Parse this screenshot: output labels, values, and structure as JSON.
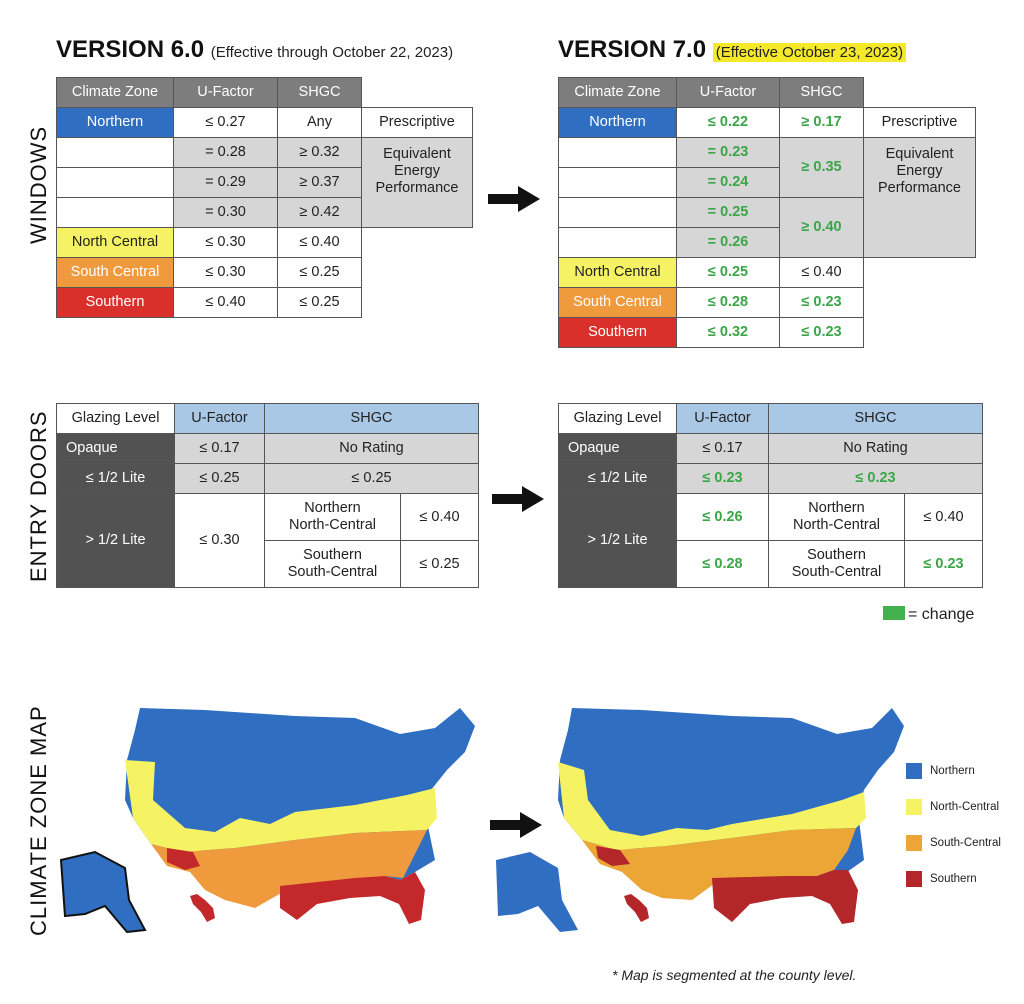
{
  "windows": {
    "section_label": "WINDOWS",
    "v6": {
      "title": "VERSION 6.0",
      "effective": "(Effective through October 22, 2023)",
      "headers": [
        "Climate Zone",
        "U-Factor",
        "SHGC"
      ],
      "rows": [
        {
          "zone": "Northern",
          "u": "≤ 0.27",
          "shgc": "Any"
        },
        {
          "zone": "",
          "u": "= 0.28",
          "shgc": "≥ 0.32"
        },
        {
          "zone": "",
          "u": "= 0.29",
          "shgc": "≥ 0.37"
        },
        {
          "zone": "",
          "u": "= 0.30",
          "shgc": "≥ 0.42"
        },
        {
          "zone": "North Central",
          "u": "≤ 0.30",
          "shgc": "≤ 0.40"
        },
        {
          "zone": "South Central",
          "u": "≤ 0.30",
          "shgc": "≤ 0.25"
        },
        {
          "zone": "Southern",
          "u": "≤ 0.40",
          "shgc": "≤ 0.25"
        }
      ],
      "prescriptive": "Prescriptive",
      "equivalent": "Equivalent Energy Performance"
    },
    "v7": {
      "title": "VERSION 7.0",
      "effective": "(Effective October 23, 2023)",
      "headers": [
        "Climate Zone",
        "U-Factor",
        "SHGC"
      ],
      "northern": {
        "zone": "Northern",
        "u": "≤ 0.22",
        "shgc": "≥ 0.17"
      },
      "eq_u": [
        "= 0.23",
        "= 0.24",
        "= 0.25",
        "= 0.26"
      ],
      "eq_shgc": [
        "≥ 0.35",
        "≥ 0.40"
      ],
      "rows": [
        {
          "zone": "North Central",
          "u": "≤ 0.25",
          "shgc": "≤ 0.40"
        },
        {
          "zone": "South Central",
          "u": "≤ 0.28",
          "shgc": "≤ 0.23"
        },
        {
          "zone": "Southern",
          "u": "≤ 0.32",
          "shgc": "≤ 0.23"
        }
      ],
      "prescriptive": "Prescriptive",
      "equivalent": "Equivalent Energy Performance"
    }
  },
  "doors": {
    "section_label": "ENTRY DOORS",
    "headers": [
      "Glazing Level",
      "U-Factor",
      "SHGC"
    ],
    "v6": {
      "opaque": {
        "label": "Opaque",
        "u": "≤ 0.17",
        "shgc": "No Rating"
      },
      "half": {
        "label": "≤ 1/2 Lite",
        "u": "≤ 0.25",
        "shgc": "≤ 0.25"
      },
      "more": {
        "label": "> 1/2 Lite",
        "u": "≤ 0.30",
        "n_zone_1": "Northern",
        "n_zone_2": "North-Central",
        "n_shgc": "≤ 0.40",
        "s_zone_1": "Southern",
        "s_zone_2": "South-Central",
        "s_shgc": "≤ 0.25"
      }
    },
    "v7": {
      "opaque": {
        "label": "Opaque",
        "u": "≤ 0.17",
        "shgc": "No Rating"
      },
      "half": {
        "label": "≤ 1/2 Lite",
        "u": "≤ 0.23",
        "shgc": "≤ 0.23"
      },
      "more": {
        "label": "> 1/2 Lite",
        "u_n": "≤ 0.26",
        "u_s": "≤ 0.28",
        "n_zone_1": "Northern",
        "n_zone_2": "North-Central",
        "n_shgc": "≤ 0.40",
        "s_zone_1": "Southern",
        "s_zone_2": "South-Central",
        "s_shgc": "≤ 0.23"
      }
    },
    "change_legend": "= change"
  },
  "map": {
    "section_label": "CLIMATE ZONE MAP",
    "legend": [
      {
        "label": "Northern",
        "color": "#2f6ec1"
      },
      {
        "label": "North-Central",
        "color": "#f5f263"
      },
      {
        "label": "South-Central",
        "color": "#eba636"
      },
      {
        "label": "Southern",
        "color": "#b3262a"
      }
    ],
    "footnote": "* Map is segmented at the county level."
  },
  "colors": {
    "northern": "#2f6ec1",
    "north_central": "#f5f263",
    "south_central": "#ef9a3c",
    "southern": "#d9302b",
    "change": "#3aa647",
    "highlight": "#f4ea2a"
  }
}
